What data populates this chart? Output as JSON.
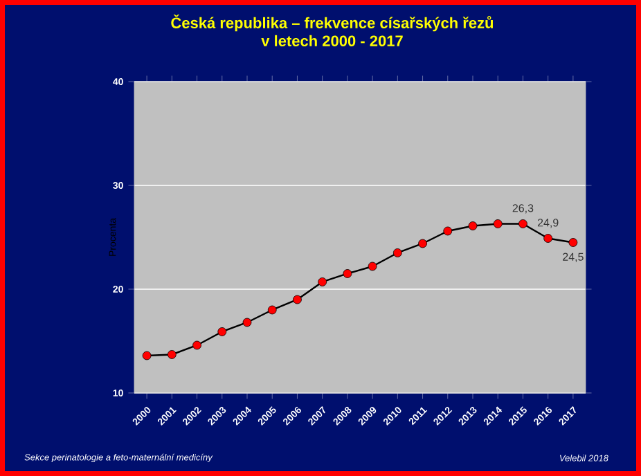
{
  "chart_data": {
    "type": "line",
    "title": "Česká republika – frekvence císařských řezů\nv letech 2000 - 2017",
    "ylabel": "Procenta",
    "categories": [
      "2000",
      "2001",
      "2002",
      "2003",
      "2004",
      "2005",
      "2006",
      "2007",
      "2008",
      "2009",
      "2010",
      "2011",
      "2012",
      "2013",
      "2014",
      "2015",
      "2016",
      "2017"
    ],
    "values": [
      13.6,
      13.7,
      14.6,
      15.9,
      16.8,
      18.0,
      19.0,
      20.7,
      21.5,
      22.2,
      23.5,
      24.4,
      25.6,
      26.1,
      26.3,
      26.3,
      24.9,
      24.5
    ],
    "value_labels": [
      null,
      null,
      null,
      null,
      null,
      null,
      null,
      null,
      null,
      null,
      null,
      null,
      null,
      null,
      null,
      "26,3",
      "24,9",
      "24,5"
    ],
    "color": "#000000",
    "marker": "circle",
    "ylim": [
      10,
      40
    ],
    "yticks": [
      10,
      20,
      30,
      40
    ],
    "grid": "y",
    "annotations": [
      "Sekce perinatologie a feto-maternální medicíny",
      "Velebil 2018"
    ]
  }
}
